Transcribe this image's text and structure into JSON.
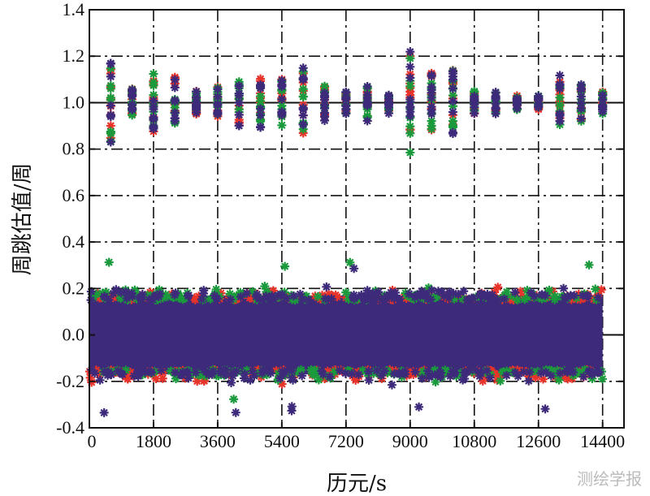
{
  "chart_data": {
    "type": "scatter",
    "title": "",
    "xlabel": "历元/s",
    "ylabel": "周跳估值/周",
    "xlim": [
      0,
      15000
    ],
    "ylim": [
      -0.4,
      1.4
    ],
    "xticks": [
      0,
      1800,
      3600,
      5400,
      7200,
      9000,
      10800,
      12600,
      14400
    ],
    "xtick_labels": [
      "0",
      "1800",
      "3600",
      "5400",
      "7200",
      "9000",
      "10800",
      "12600",
      "14400"
    ],
    "yticks": [
      -0.4,
      -0.2,
      0.0,
      0.2,
      0.4,
      0.6,
      0.8,
      1.0,
      1.2,
      1.4
    ],
    "ytick_labels": [
      "-0.4",
      "-0.2",
      "0.0",
      "0.2",
      "0.4",
      "0.6",
      "0.8",
      "1.0",
      "1.2",
      "1.4"
    ],
    "grid": true,
    "marker": "asterisk",
    "series": [
      {
        "color": "#e8332a"
      },
      {
        "color": "#1a9a3c"
      },
      {
        "color": "#3d2a7a"
      }
    ],
    "noise_band": {
      "x_range": [
        0,
        14400
      ],
      "typical_range": [
        -0.2,
        0.2
      ],
      "extreme_range": [
        -0.33,
        0.38
      ]
    },
    "cycle_slip_epochs": [
      600,
      1200,
      1800,
      2400,
      3000,
      3600,
      4200,
      4800,
      5400,
      6000,
      6600,
      7200,
      7800,
      8400,
      9000,
      9600,
      10200,
      10800,
      11400,
      12000,
      12600,
      13200,
      13800,
      14400
    ],
    "cycle_slip_spread": [
      0.18,
      0.06,
      0.13,
      0.12,
      0.05,
      0.07,
      0.1,
      0.12,
      0.1,
      0.16,
      0.08,
      0.05,
      0.08,
      0.05,
      0.22,
      0.13,
      0.14,
      0.05,
      0.05,
      0.03,
      0.03,
      0.12,
      0.08,
      0.05
    ],
    "cycle_slip_value": 1.0
  },
  "watermark": "测绘学报"
}
